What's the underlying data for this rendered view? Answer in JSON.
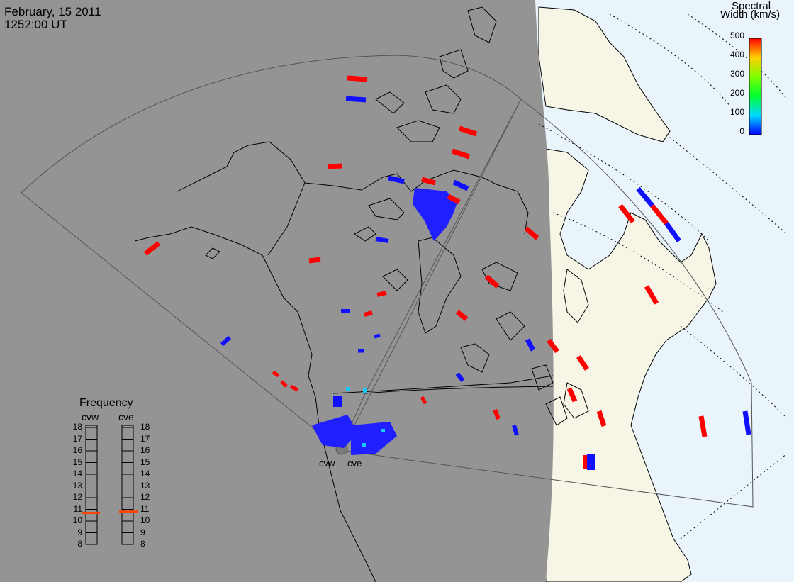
{
  "header": {
    "date": "February, 15 2011",
    "time": "1252:00 UT"
  },
  "colorbar": {
    "title_line1": "Spectral",
    "title_line2": "Width (km/s)",
    "ticks": [
      "500",
      "400",
      "300",
      "200",
      "100",
      "0"
    ]
  },
  "frequency_panel": {
    "title": "Frequency",
    "radars": [
      "cvw",
      "cve"
    ],
    "ticks": [
      "18",
      "17",
      "16",
      "15",
      "14",
      "13",
      "12",
      "11",
      "10",
      "9",
      "8"
    ],
    "cvw_freq_mhz": 10.7,
    "cve_freq_mhz": 10.8
  },
  "sites": {
    "west_label": "cvw",
    "east_label": "cve"
  },
  "colors": {
    "night": "#949494",
    "day_land": "#f7f5e6",
    "ocean_day": "#e9f4fb",
    "high_width": "#ff0000",
    "low_width": "#1010ff",
    "medium_width": "#19c8ff",
    "freq_marker": "#ff4400"
  }
}
